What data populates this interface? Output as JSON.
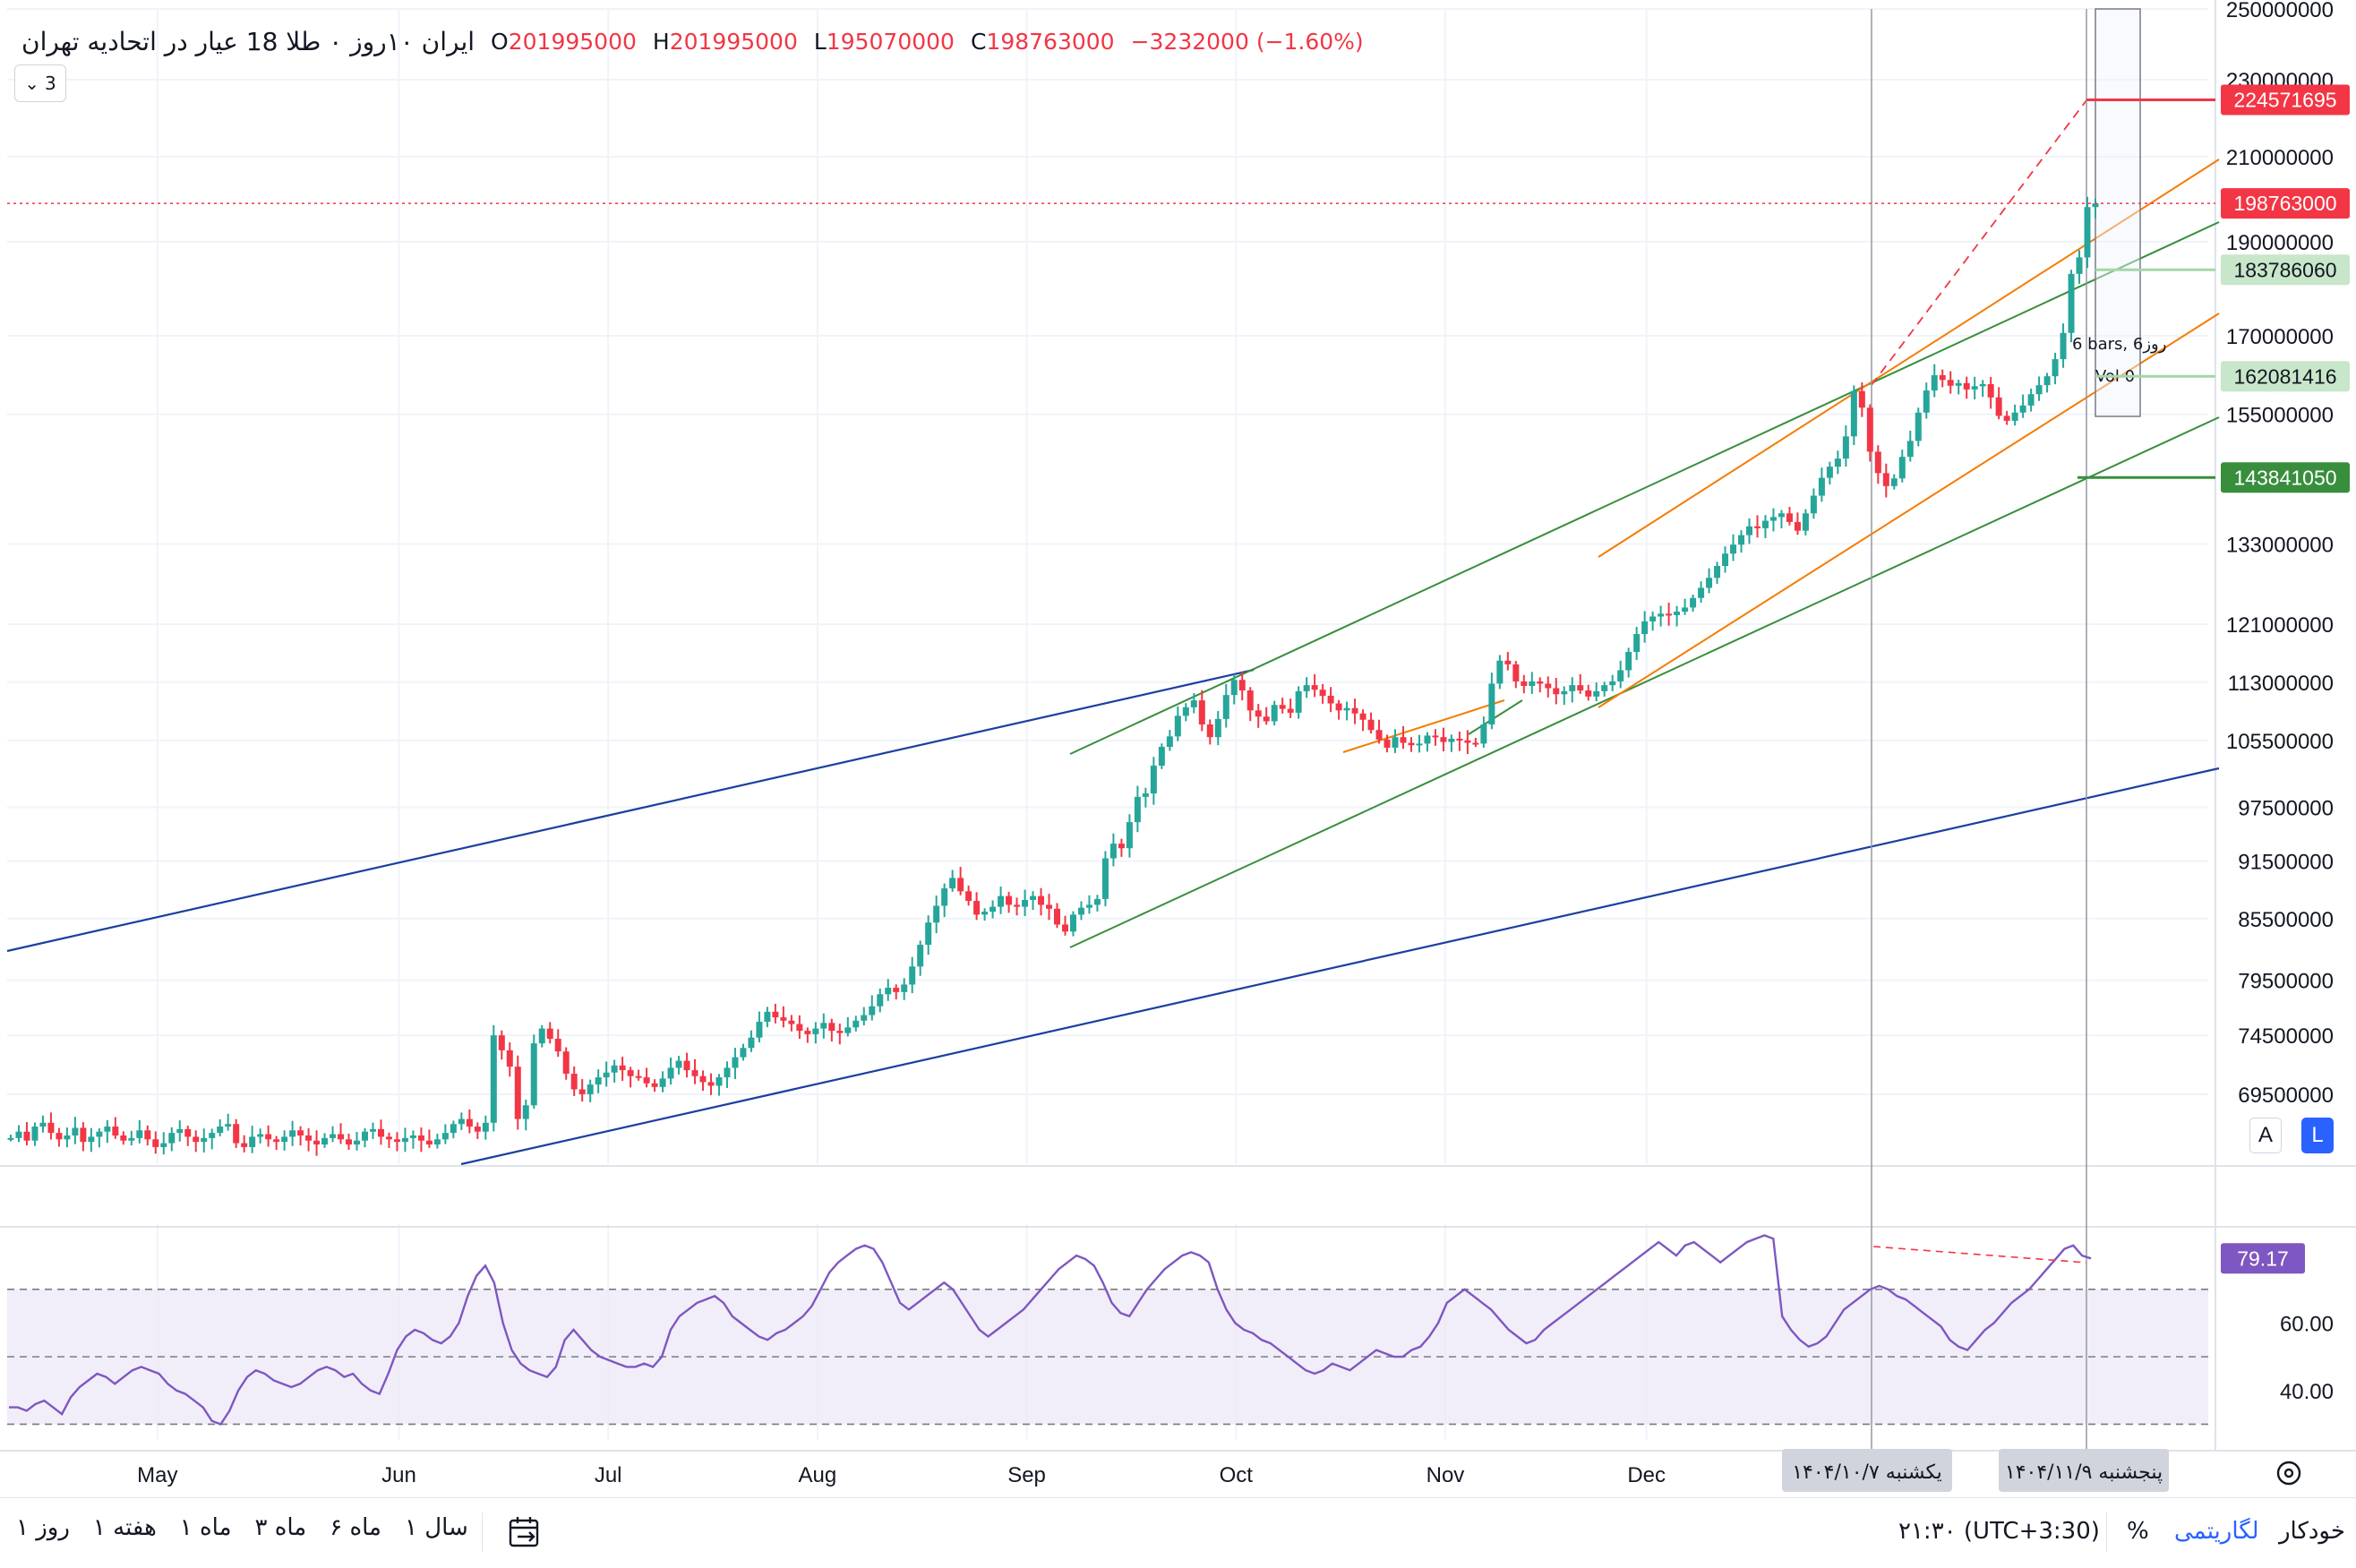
{
  "legend": {
    "title": "ایران ۱۰روز ۰ طلا 18 عیار در اتحادیه تهران",
    "o_label": "O",
    "o_value": "201995000",
    "h_label": "H",
    "h_value": "201995000",
    "l_label": "L",
    "l_value": "195070000",
    "c_label": "C",
    "c_value": "198763000",
    "change": "−3232000 (−1.60%)",
    "layers_count": "3"
  },
  "colors": {
    "up": "#26a69a",
    "down": "#f23645",
    "grid": "#f0f3fa",
    "trend_blue": "#1c3fa0",
    "trend_green": "#388e3c",
    "trend_orange": "#f57c00",
    "rsi_line": "#7e57c2",
    "rsi_band": "#ede7f6"
  },
  "chart_data": [
    {
      "type": "candlestick",
      "price_axis_ticks": [
        "250000000",
        "230000000",
        "210000000",
        "190000000",
        "170000000",
        "155000000",
        "133000000",
        "121000000",
        "113000000",
        "105500000",
        "97500000",
        "91500000",
        "85500000",
        "79500000",
        "74500000",
        "69500000"
      ],
      "ylim": [
        64000000,
        250000000
      ],
      "log_scale": true,
      "time_axis_labels": [
        "May",
        "Jun",
        "Jul",
        "Aug",
        "Sep",
        "Oct",
        "Nov",
        "Dec"
      ],
      "date_badges": [
        "یکشنبه ۱۴۰۴/۱۰/۷",
        "پنجشنبه ۱۴۰۴/۱۱/۹"
      ],
      "price_labels": [
        {
          "value": "224571695",
          "style": "red"
        },
        {
          "value": "198763000",
          "style": "red"
        },
        {
          "value": "183786060",
          "style": "lightgreen"
        },
        {
          "value": "162081416",
          "style": "lightgreen"
        },
        {
          "value": "143841050",
          "style": "green"
        }
      ],
      "measure_note": "6 bars, 6روز",
      "measure_vol": "Vol 0",
      "series": [
        {
          "close": [
            66000000,
            66500000,
            65800000,
            66900000,
            67200000,
            66400000,
            65900000,
            66200000,
            66800000,
            65700000,
            66100000,
            66500000,
            66900000,
            66200000,
            65800000,
            66000000,
            66600000,
            65900000,
            65300000,
            65600000,
            66400000,
            66700000,
            66100000,
            65700000,
            66000000,
            66400000,
            66900000,
            67100000,
            65600000,
            65300000,
            66100000,
            66300000,
            65900000,
            65700000,
            66100000,
            66600000,
            66200000,
            65800000,
            65500000,
            66000000,
            66300000,
            65900000,
            65500000,
            65800000,
            66500000,
            66700000,
            66100000,
            65900000,
            65700000,
            66000000,
            66200000,
            65800000,
            65500000,
            65900000,
            66400000,
            67100000,
            67500000,
            66900000,
            66500000,
            67200000,
            74500000,
            73200000,
            71800000,
            67500000,
            68600000,
            73800000,
            75100000,
            74200000,
            73100000,
            71200000,
            69900000,
            69500000,
            70300000,
            70900000,
            71300000,
            71900000,
            71500000,
            71000000,
            70900000,
            70400000,
            70100000,
            70800000,
            71700000,
            72300000,
            71500000,
            71000000,
            70500000,
            70200000,
            70900000,
            71700000,
            72600000,
            73400000,
            74300000,
            75700000,
            76600000,
            76100000,
            75800000,
            75500000,
            74900000,
            74600000,
            75100000,
            75600000,
            74900000,
            74700000,
            75200000,
            75800000,
            76300000,
            77100000,
            78200000,
            78800000,
            78400000,
            79100000,
            80800000,
            82900000,
            85100000,
            86800000,
            88600000,
            89700000,
            88300000,
            87300000,
            85900000,
            86200000,
            86700000,
            87800000,
            86900000,
            86700000,
            87400000,
            87800000,
            86900000,
            86500000,
            84900000,
            84200000,
            85900000,
            86600000,
            86900000,
            87500000,
            91800000,
            93400000,
            92900000,
            95800000,
            98700000,
            99100000,
            102400000,
            104700000,
            106000000,
            108600000,
            109700000,
            110600000,
            107500000,
            105900000,
            108200000,
            111300000,
            113300000,
            111900000,
            109300000,
            108500000,
            107900000,
            110000000,
            109500000,
            109000000,
            111800000,
            112600000,
            112000000,
            111200000,
            110200000,
            109300000,
            109600000,
            108900000,
            108100000,
            106800000,
            105600000,
            104600000,
            105900000,
            105200000,
            104900000,
            105100000,
            106100000,
            105900000,
            105300000,
            105700000,
            105500000,
            105200000,
            105100000,
            107500000,
            112800000,
            115900000,
            115400000,
            113100000,
            112500000,
            113100000,
            112800000,
            112200000,
            111400000,
            111800000,
            112600000,
            111900000,
            111100000,
            111800000,
            112600000,
            113100000,
            114600000,
            117100000,
            119600000,
            121400000,
            122100000,
            122500000,
            122300000,
            122800000,
            123400000,
            124800000,
            126300000,
            127800000,
            129600000,
            131500000,
            132900000,
            134400000,
            135800000,
            135500000,
            136700000,
            137300000,
            137900000,
            136500000,
            135100000,
            137900000,
            140800000,
            143800000,
            145700000,
            147100000,
            151000000,
            159300000,
            156200000,
            148300000,
            144600000,
            142400000,
            143700000,
            147400000,
            150200000,
            155300000,
            159400000,
            162300000,
            161400000,
            160300000,
            160800000,
            159600000,
            160200000,
            160600000,
            158100000,
            154700000,
            153800000,
            155300000,
            156600000,
            158700000,
            160400000,
            162100000,
            165400000,
            170600000,
            182900000,
            186500000,
            197900000,
            198763000
          ]
        }
      ]
    },
    {
      "type": "line",
      "name": "RSI",
      "value_label": "79.17",
      "ticks": [
        "60.00",
        "40.00"
      ],
      "ylim": [
        28,
        88
      ],
      "levels": [
        70,
        50,
        30
      ],
      "series": [
        {
          "values": [
            35,
            35,
            34,
            36,
            37,
            35,
            33,
            38,
            41,
            43,
            45,
            44,
            42,
            44,
            46,
            47,
            46,
            45,
            42,
            40,
            39,
            37,
            35,
            31,
            30,
            34,
            40,
            44,
            46,
            45,
            43,
            42,
            41,
            42,
            44,
            46,
            47,
            46,
            44,
            45,
            42,
            40,
            39,
            45,
            52,
            56,
            58,
            57,
            55,
            54,
            56,
            60,
            68,
            74,
            77,
            72,
            60,
            52,
            48,
            46,
            45,
            44,
            47,
            55,
            58,
            55,
            52,
            50,
            49,
            48,
            47,
            47,
            48,
            47,
            50,
            58,
            62,
            64,
            66,
            67,
            68,
            66,
            62,
            60,
            58,
            56,
            55,
            57,
            58,
            60,
            62,
            65,
            70,
            75,
            78,
            80,
            82,
            83,
            82,
            78,
            72,
            66,
            64,
            66,
            68,
            70,
            72,
            70,
            66,
            62,
            58,
            56,
            58,
            60,
            62,
            64,
            67,
            70,
            73,
            76,
            78,
            80,
            79,
            77,
            72,
            66,
            63,
            62,
            66,
            70,
            73,
            76,
            78,
            80,
            81,
            80,
            78,
            70,
            64,
            60,
            58,
            57,
            55,
            54,
            52,
            50,
            48,
            46,
            45,
            46,
            48,
            47,
            46,
            48,
            50,
            52,
            51,
            50,
            50,
            52,
            53,
            56,
            60,
            66,
            68,
            70,
            68,
            66,
            64,
            61,
            58,
            56,
            54,
            55,
            58,
            60,
            62,
            64,
            66,
            68,
            70,
            72,
            74,
            76,
            78,
            80,
            82,
            84,
            82,
            80,
            83,
            84,
            82,
            80,
            78,
            80,
            82,
            84,
            85,
            86,
            85,
            62,
            58,
            55,
            53,
            54,
            56,
            60,
            64,
            66,
            68,
            70,
            71,
            70,
            68,
            67,
            65,
            63,
            61,
            59,
            55,
            53,
            52,
            55,
            58,
            60,
            63,
            66,
            68,
            70,
            73,
            76,
            79,
            82,
            83,
            80,
            79.17
          ]
        }
      ]
    }
  ],
  "axis_tools": {
    "auto_label": "A",
    "log_label": "L"
  },
  "bottom_bar": {
    "ranges": [
      "۱ روز",
      "۱ هفته",
      "۱ ماه",
      "۳ ماه",
      "۶ ماه",
      "۱ سال"
    ],
    "time": "۲۱:۳۰ (UTC+3:30)",
    "percent": "%",
    "log": "لگاریتمی",
    "auto": "خودکار"
  }
}
